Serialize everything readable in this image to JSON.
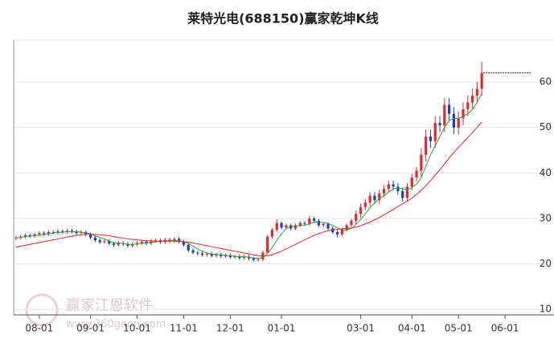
{
  "chart_data": {
    "type": "candlestick",
    "title": "莱特光电(688150)赢家乾坤K线",
    "watermark": [
      "赢家江恩软件",
      "www.360gann.com"
    ],
    "up_color": "#e8262c",
    "down_color": "#1a3fb5",
    "grid": true,
    "y_axis_side": "right",
    "xlim": [
      -0.5,
      110.5
    ],
    "ylim": [
      8.8,
      69.2
    ],
    "xticks": [
      {
        "value": 5,
        "label": "08-01"
      },
      {
        "value": 16,
        "label": "09-01"
      },
      {
        "value": 26,
        "label": "10-01"
      },
      {
        "value": 36,
        "label": "11-01"
      },
      {
        "value": 46,
        "label": "12-01"
      },
      {
        "value": 57,
        "label": "01-01"
      },
      {
        "value": 74,
        "label": "03-01"
      },
      {
        "value": 85,
        "label": "04-01"
      },
      {
        "value": 95,
        "label": "05-01"
      },
      {
        "value": 105,
        "label": "06-01"
      }
    ],
    "yticks": [
      10,
      20,
      30,
      40,
      50,
      60
    ],
    "open": [
      25.6,
      25.8,
      26.0,
      26.3,
      26.1,
      26.5,
      26.8,
      26.6,
      27.0,
      26.9,
      27.2,
      27.0,
      27.3,
      27.1,
      26.8,
      27.0,
      26.5,
      25.8,
      25.2,
      24.8,
      25.0,
      24.5,
      24.2,
      24.6,
      24.4,
      24.0,
      24.3,
      24.6,
      24.9,
      24.5,
      25.0,
      25.2,
      24.8,
      25.3,
      25.0,
      25.5,
      24.9,
      24.2,
      23.0,
      22.5,
      22.3,
      22.0,
      22.2,
      21.8,
      22.0,
      21.7,
      21.9,
      21.5,
      21.7,
      21.3,
      21.6,
      21.2,
      20.9,
      21.0,
      22.5,
      26.0,
      27.5,
      29.0,
      28.0,
      28.5,
      27.8,
      28.5,
      29.0,
      28.8,
      30.0,
      29.5,
      28.5,
      28.8,
      27.8,
      27.0,
      26.5,
      27.5,
      28.5,
      29.5,
      31.0,
      32.5,
      33.5,
      35.0,
      34.0,
      35.5,
      36.5,
      37.5,
      37.0,
      36.0,
      34.5,
      37.0,
      39.0,
      40.5,
      44.0,
      48.0,
      47.0,
      51.0,
      50.5,
      55.0,
      53.0,
      50.0,
      52.0,
      54.0,
      55.5,
      57.0,
      58.5
    ],
    "high": [
      26.2,
      26.4,
      26.7,
      26.7,
      26.9,
      27.2,
      27.2,
      27.4,
      27.4,
      27.6,
      27.6,
      27.7,
      27.7,
      27.5,
      27.4,
      27.4,
      26.9,
      26.2,
      25.6,
      25.4,
      25.4,
      24.9,
      25.0,
      25.0,
      24.8,
      24.7,
      25.0,
      25.3,
      25.3,
      25.4,
      25.6,
      25.6,
      25.7,
      25.7,
      25.9,
      25.9,
      25.3,
      24.6,
      23.4,
      22.9,
      22.7,
      22.6,
      22.6,
      22.4,
      22.4,
      22.3,
      22.3,
      22.1,
      22.1,
      22.0,
      22.0,
      21.6,
      21.4,
      22.9,
      26.4,
      27.9,
      29.8,
      29.4,
      28.9,
      28.9,
      28.9,
      29.4,
      29.4,
      30.6,
      30.4,
      29.9,
      29.2,
      29.2,
      28.2,
      27.4,
      27.9,
      28.9,
      29.9,
      31.8,
      33.3,
      34.3,
      35.8,
      35.8,
      36.3,
      37.3,
      38.3,
      38.3,
      37.8,
      36.8,
      37.8,
      39.8,
      41.3,
      45.5,
      49.5,
      49.5,
      52.5,
      52.5,
      56.5,
      56.5,
      54.5,
      53.5,
      55.5,
      57.0,
      58.5,
      60.0,
      64.5
    ],
    "low": [
      25.2,
      25.4,
      25.6,
      25.7,
      25.7,
      26.1,
      26.2,
      26.2,
      26.5,
      26.5,
      26.6,
      26.6,
      26.7,
      26.4,
      26.4,
      26.1,
      25.4,
      24.8,
      24.4,
      24.4,
      24.1,
      23.8,
      23.8,
      24.0,
      23.6,
      23.6,
      23.9,
      24.2,
      24.1,
      24.1,
      24.6,
      24.4,
      24.4,
      24.6,
      24.6,
      24.5,
      23.8,
      22.6,
      22.1,
      21.9,
      21.6,
      21.6,
      21.4,
      21.4,
      21.3,
      21.3,
      21.1,
      21.1,
      20.9,
      20.9,
      20.8,
      20.5,
      20.5,
      20.6,
      22.1,
      25.6,
      27.1,
      27.6,
      27.6,
      27.4,
      27.4,
      28.1,
      28.4,
      28.4,
      29.1,
      28.1,
      28.1,
      27.4,
      26.6,
      25.8,
      26.1,
      27.1,
      28.1,
      28.7,
      30.2,
      31.7,
      32.7,
      33.2,
      33.2,
      34.7,
      35.7,
      36.2,
      35.2,
      33.7,
      33.7,
      36.2,
      38.2,
      39.0,
      42.5,
      45.5,
      45.5,
      49.0,
      49.0,
      51.5,
      48.5,
      48.5,
      50.5,
      52.5,
      54.0,
      55.5,
      57.0
    ],
    "close": [
      25.8,
      26.0,
      26.3,
      26.1,
      26.5,
      26.8,
      26.6,
      27.0,
      26.9,
      27.2,
      27.0,
      27.3,
      27.1,
      26.8,
      27.0,
      26.5,
      25.8,
      25.2,
      24.8,
      25.0,
      24.5,
      24.2,
      24.6,
      24.4,
      24.0,
      24.3,
      24.6,
      24.9,
      24.5,
      25.0,
      25.2,
      24.8,
      25.3,
      25.0,
      25.5,
      24.9,
      24.2,
      23.0,
      22.5,
      22.3,
      22.0,
      22.2,
      21.8,
      22.0,
      21.7,
      21.9,
      21.5,
      21.7,
      21.3,
      21.6,
      21.2,
      20.9,
      21.0,
      22.5,
      26.0,
      27.5,
      29.0,
      28.0,
      28.5,
      27.8,
      28.5,
      29.0,
      28.8,
      30.0,
      29.5,
      28.5,
      28.8,
      27.8,
      27.0,
      26.5,
      27.5,
      28.5,
      29.5,
      31.0,
      32.5,
      33.5,
      35.0,
      34.0,
      35.5,
      36.5,
      37.5,
      37.0,
      36.0,
      34.5,
      37.0,
      39.0,
      40.5,
      44.0,
      48.0,
      47.0,
      51.0,
      50.5,
      55.0,
      53.0,
      50.0,
      52.0,
      54.0,
      55.5,
      57.0,
      58.5,
      62.0
    ],
    "lines": [
      {
        "color": "#2e9e3c",
        "values": [
          25.7,
          25.8,
          26.0,
          26.1,
          26.2,
          26.3,
          26.5,
          26.6,
          26.8,
          26.9,
          27.0,
          27.1,
          27.1,
          27.1,
          27.0,
          26.9,
          26.6,
          26.2,
          25.8,
          25.5,
          25.0,
          24.7,
          24.6,
          24.5,
          24.3,
          24.3,
          24.4,
          24.5,
          24.6,
          24.7,
          24.9,
          25.0,
          25.1,
          25.1,
          25.2,
          25.1,
          24.9,
          24.5,
          23.9,
          23.3,
          22.8,
          22.4,
          22.2,
          22.1,
          22.0,
          21.9,
          21.8,
          21.7,
          21.6,
          21.6,
          21.5,
          21.3,
          21.2,
          21.4,
          22.3,
          23.6,
          25.2,
          26.6,
          27.8,
          28.2,
          28.4,
          28.4,
          28.5,
          28.8,
          29.2,
          29.2,
          29.1,
          28.9,
          28.5,
          27.9,
          27.5,
          27.5,
          27.8,
          28.7,
          29.8,
          31.0,
          32.4,
          33.4,
          34.4,
          35.0,
          35.8,
          36.5,
          36.7,
          36.5,
          36.4,
          36.8,
          37.5,
          39.0,
          41.5,
          44.0,
          46.0,
          48.0,
          50.0,
          51.5,
          52.0,
          52.0,
          52.5,
          53.0,
          54.0,
          55.5,
          57.5
        ]
      },
      {
        "color": "#e8262c",
        "values": [
          23.7,
          23.9,
          24.1,
          24.3,
          24.5,
          24.7,
          24.9,
          25.1,
          25.3,
          25.5,
          25.7,
          25.9,
          26.1,
          26.3,
          26.4,
          26.5,
          26.5,
          26.5,
          26.4,
          26.3,
          26.2,
          26.0,
          25.8,
          25.7,
          25.5,
          25.4,
          25.3,
          25.2,
          25.1,
          25.1,
          25.0,
          25.0,
          25.0,
          25.0,
          25.0,
          24.9,
          24.9,
          24.8,
          24.6,
          24.4,
          24.2,
          24.0,
          23.8,
          23.6,
          23.4,
          23.2,
          23.0,
          22.8,
          22.6,
          22.4,
          22.2,
          22.0,
          21.8,
          21.7,
          21.8,
          22.0,
          22.4,
          22.8,
          23.3,
          23.8,
          24.3,
          24.8,
          25.3,
          25.8,
          26.3,
          26.7,
          27.0,
          27.3,
          27.5,
          27.6,
          27.7,
          27.8,
          27.9,
          28.1,
          28.4,
          28.8,
          29.2,
          29.7,
          30.2,
          30.8,
          31.4,
          32.0,
          32.6,
          33.2,
          33.8,
          34.5,
          35.3,
          36.2,
          37.2,
          38.3,
          39.5,
          40.7,
          42.0,
          43.3,
          44.5,
          45.6,
          46.7,
          47.8,
          48.9,
          50.0,
          51.2
        ]
      }
    ]
  }
}
